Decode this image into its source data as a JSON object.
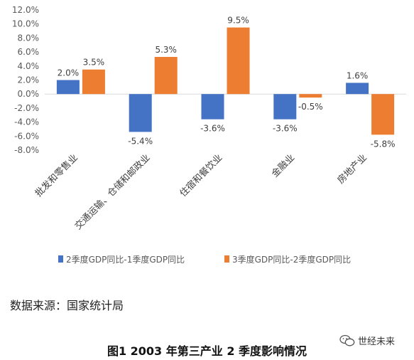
{
  "chart_data": {
    "type": "bar",
    "categories": [
      "批发和零售业",
      "交通运输、仓储和邮政业",
      "住宿和餐饮业",
      "金融业",
      "房地产业"
    ],
    "series": [
      {
        "name": "2季度GDP同比-1季度GDP同比",
        "values": [
          2.0,
          -5.4,
          -3.6,
          -3.6,
          1.6
        ],
        "labels": [
          "2.0%",
          "-5.4%",
          "-3.6%",
          "-3.6%",
          "1.6%"
        ],
        "color": "#4472C4"
      },
      {
        "name": "3季度GDP同比-2季度GDP同比",
        "values": [
          3.5,
          5.3,
          9.5,
          -0.5,
          -5.8
        ],
        "labels": [
          "3.5%",
          "5.3%",
          "9.5%",
          "-0.5%",
          "-5.8%"
        ],
        "color": "#ED7D31"
      }
    ],
    "yticks": [
      "12.0%",
      "10.0%",
      "8.0%",
      "6.0%",
      "4.0%",
      "2.0%",
      "0.0%",
      "-2.0%",
      "-4.0%",
      "-6.0%",
      "-8.0%"
    ],
    "ylim": [
      -8,
      12
    ],
    "grid": false,
    "legend_position": "bottom"
  },
  "source": "数据来源：国家统计局",
  "caption": "图1 2003 年第三产业 2 季度影响情况",
  "watermark": "世经未来"
}
